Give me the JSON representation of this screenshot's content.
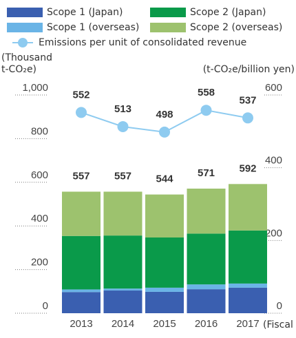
{
  "chart_data": {
    "type": "bar",
    "stacked": true,
    "categories": [
      "2013",
      "2014",
      "2015",
      "2016",
      "2017"
    ],
    "series": [
      {
        "name": "Scope 1 (Japan)",
        "color": "#3a5fb0",
        "values": [
          97,
          104,
          98,
          110,
          117
        ]
      },
      {
        "name": "Scope 1 (overseas)",
        "color": "#6ab4e6",
        "values": [
          12,
          9,
          19,
          22,
          19
        ]
      },
      {
        "name": "Scope 2 (Japan)",
        "color": "#0a9a4a",
        "values": [
          245,
          243,
          230,
          233,
          243
        ]
      },
      {
        "name": "Scope 2 (overseas)",
        "color": "#9dc26e",
        "values": [
          203,
          201,
          197,
          206,
          213
        ]
      },
      {
        "name": "Emissions per unit of consolidated revenue",
        "color": "#8ecbf0",
        "type": "line",
        "axis": "y2",
        "values": [
          552,
          513,
          498,
          558,
          537
        ]
      }
    ],
    "bar_totals": [
      557,
      557,
      544,
      571,
      592
    ],
    "ylabel": [
      "(Thousand",
      "t-CO₂e)"
    ],
    "y2label": "(t-CO₂e/billion yen)",
    "xlabel": "(Fiscal year)",
    "ylim": [
      0,
      1000
    ],
    "yticks": [
      0,
      200,
      400,
      600,
      800,
      {
        "value": 1000,
        "label": "1,000"
      }
    ],
    "y2lim": [
      0,
      600
    ],
    "y2ticks": [
      0,
      200,
      400,
      600
    ]
  }
}
